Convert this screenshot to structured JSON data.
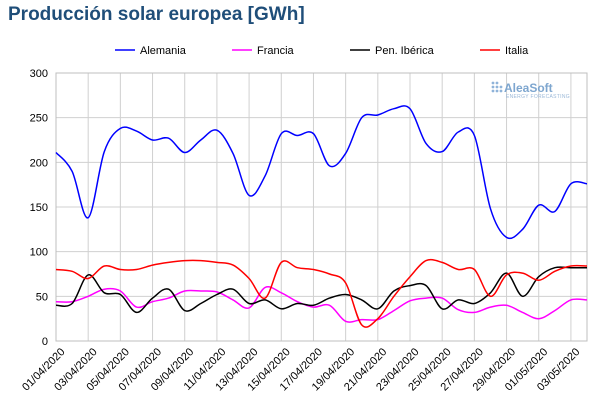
{
  "chart_data": {
    "type": "line",
    "title": "Producción solar europea [GWh]",
    "logo": {
      "name": "AleaSoft",
      "tagline": "ENERGY FORECASTING"
    },
    "ylim": [
      0,
      300
    ],
    "yticks": [
      0,
      50,
      100,
      150,
      200,
      250,
      300
    ],
    "grid": true,
    "legend_position": "top",
    "x": [
      "01/04/2020",
      "02/04/2020",
      "03/04/2020",
      "04/04/2020",
      "05/04/2020",
      "06/04/2020",
      "07/04/2020",
      "08/04/2020",
      "09/04/2020",
      "10/04/2020",
      "11/04/2020",
      "12/04/2020",
      "13/04/2020",
      "14/04/2020",
      "15/04/2020",
      "16/04/2020",
      "17/04/2020",
      "18/04/2020",
      "19/04/2020",
      "20/04/2020",
      "21/04/2020",
      "22/04/2020",
      "23/04/2020",
      "24/04/2020",
      "25/04/2020",
      "26/04/2020",
      "27/04/2020",
      "28/04/2020",
      "29/04/2020",
      "30/04/2020",
      "01/05/2020",
      "02/05/2020",
      "03/05/2020",
      "04/05/2020"
    ],
    "xtick_labels": [
      "01/04/2020",
      "03/04/2020",
      "05/04/2020",
      "07/04/2020",
      "09/04/2020",
      "11/04/2020",
      "13/04/2020",
      "15/04/2020",
      "17/04/2020",
      "19/04/2020",
      "21/04/2020",
      "23/04/2020",
      "25/04/2020",
      "27/04/2020",
      "29/04/2020",
      "01/05/2020",
      "03/05/2020"
    ],
    "series": [
      {
        "name": "Alemania",
        "color": "#0000ff",
        "values": [
          211,
          190,
          138,
          212,
          238,
          235,
          225,
          227,
          211,
          225,
          236,
          210,
          163,
          185,
          232,
          230,
          232,
          196,
          210,
          250,
          253,
          260,
          260,
          221,
          212,
          234,
          230,
          148,
          116,
          125,
          152,
          145,
          176,
          176
        ]
      },
      {
        "name": "Francia",
        "color": "#ff00ff",
        "values": [
          44,
          44,
          50,
          58,
          56,
          38,
          44,
          48,
          56,
          56,
          55,
          46,
          37,
          60,
          54,
          44,
          38,
          40,
          22,
          24,
          24,
          34,
          45,
          48,
          48,
          35,
          32,
          38,
          40,
          32,
          25,
          34,
          46,
          46
        ]
      },
      {
        "name": "Pen. Ibérica",
        "color": "#000000",
        "values": [
          40,
          42,
          74,
          54,
          52,
          32,
          48,
          58,
          34,
          42,
          52,
          58,
          42,
          46,
          36,
          42,
          40,
          48,
          52,
          46,
          36,
          56,
          62,
          62,
          36,
          46,
          42,
          54,
          76,
          50,
          72,
          82,
          82,
          82
        ]
      },
      {
        "name": "Italia",
        "color": "#ff0000",
        "values": [
          80,
          78,
          70,
          84,
          80,
          80,
          85,
          88,
          90,
          90,
          88,
          85,
          70,
          48,
          88,
          82,
          80,
          75,
          65,
          18,
          25,
          50,
          72,
          90,
          88,
          80,
          80,
          50,
          74,
          76,
          68,
          78,
          84,
          84
        ]
      }
    ]
  }
}
